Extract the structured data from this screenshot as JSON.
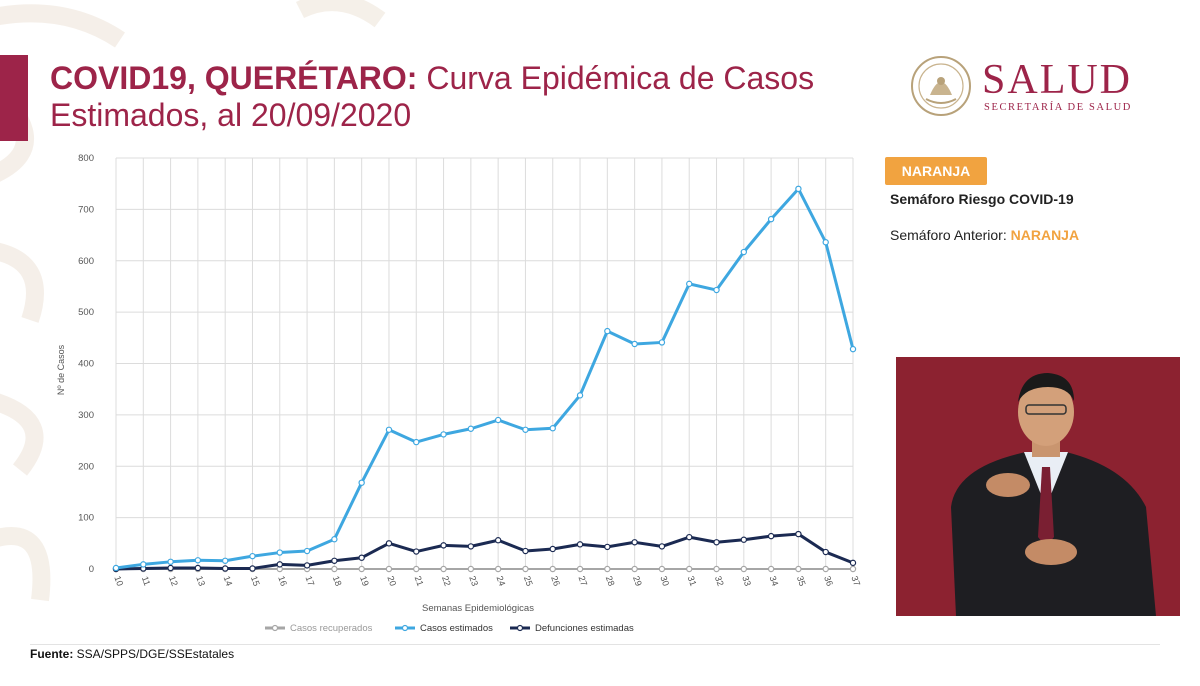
{
  "header": {
    "title_bold": "COVID19, QUERÉTARO:",
    "title_rest": " Curva Epidémica de Casos Estimados, al 20/09/2020"
  },
  "logo": {
    "word": "SALUD",
    "subtitle": "SECRETARÍA DE SALUD",
    "seal_icon": "mexico-coat-of-arms-seal-icon"
  },
  "semaforo": {
    "badge": "NARANJA",
    "label": "Semáforo Riesgo COVID-19",
    "anterior_label": "Semáforo Anterior: ",
    "anterior_value": "NARANJA"
  },
  "colors": {
    "brand": "#9d2449",
    "orange": "#f1a340",
    "estimados": "#3ea7e0",
    "defunciones": "#1b2a52",
    "recuperados": "#a6a6a6"
  },
  "chart_data": {
    "type": "line",
    "title": "",
    "xlabel": "Semanas Epidemiológicas",
    "ylabel": "Nº de Casos",
    "ylim": [
      0,
      800
    ],
    "yticks": [
      0,
      100,
      200,
      300,
      400,
      500,
      600,
      700,
      800
    ],
    "x": [
      "10",
      "11",
      "12",
      "13",
      "14",
      "15",
      "16",
      "17",
      "18",
      "19",
      "20",
      "21",
      "22",
      "23",
      "24",
      "25",
      "26",
      "27",
      "28",
      "29",
      "30",
      "31",
      "32",
      "33",
      "34",
      "35",
      "36",
      "37"
    ],
    "series": [
      {
        "name": "Casos recuperados",
        "values": [
          0,
          0,
          0,
          0,
          0,
          0,
          0,
          0,
          0,
          0,
          0,
          0,
          0,
          0,
          0,
          0,
          0,
          0,
          0,
          0,
          0,
          0,
          0,
          0,
          0,
          0,
          0,
          0
        ]
      },
      {
        "name": "Casos estimados",
        "values": [
          2,
          9,
          14,
          17,
          16,
          25,
          32,
          35,
          58,
          168,
          271,
          247,
          262,
          273,
          290,
          271,
          274,
          338,
          463,
          438,
          441,
          555,
          543,
          617,
          681,
          740,
          636,
          428
        ]
      },
      {
        "name": "Defunciones estimadas",
        "values": [
          0,
          1,
          2,
          2,
          1,
          1,
          9,
          7,
          16,
          22,
          50,
          34,
          46,
          44,
          56,
          35,
          39,
          48,
          43,
          52,
          44,
          62,
          52,
          57,
          64,
          68,
          33,
          12
        ]
      }
    ],
    "legend_position": "bottom"
  },
  "footer": {
    "source_label": "Fuente:",
    "source_value": " SSA/SPPS/DGE/SSEstatales"
  },
  "video": {
    "description_icon": "sign-language-interpreter-icon"
  }
}
